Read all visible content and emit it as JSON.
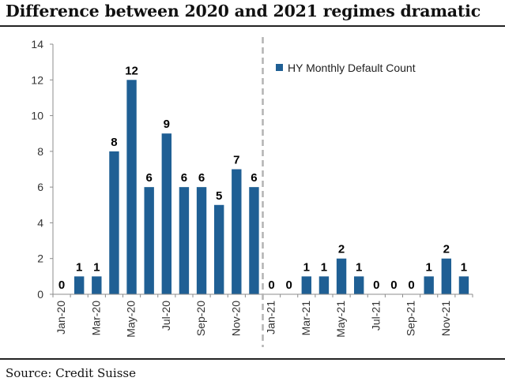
{
  "title": "Difference between 2020 and 2021 regimes dramatic",
  "source": "Source: Credit Suisse",
  "colors": {
    "bar": "#1f5f94",
    "axis": "#8c8c8c",
    "divider": "#b3b3b3"
  },
  "chart_data": {
    "type": "bar",
    "title": "Difference between 2020 and 2021 regimes dramatic",
    "xlabel": "",
    "ylabel": "",
    "ylim": [
      0,
      14
    ],
    "yticks": [
      0,
      2,
      4,
      6,
      8,
      10,
      12,
      14
    ],
    "grid": false,
    "legend": {
      "position": "top-right",
      "entries": [
        "HY Monthly Default Count"
      ]
    },
    "categories": [
      "Jan-20",
      "Feb-20",
      "Mar-20",
      "Apr-20",
      "May-20",
      "Jun-20",
      "Jul-20",
      "Aug-20",
      "Sep-20",
      "Oct-20",
      "Nov-20",
      "Dec-20",
      "Jan-21",
      "Feb-21",
      "Mar-21",
      "Apr-21",
      "May-21",
      "Jun-21",
      "Jul-21",
      "Aug-21",
      "Sep-21",
      "Oct-21",
      "Nov-21",
      "Dec-21"
    ],
    "xtick_labels": [
      "Jan-20",
      "Mar-20",
      "May-20",
      "Jul-20",
      "Sep-20",
      "Nov-20",
      "Jan-21",
      "Mar-21",
      "May-21",
      "Jul-21",
      "Sep-21",
      "Nov-21"
    ],
    "series": [
      {
        "name": "HY Monthly Default Count",
        "values": [
          0,
          1,
          1,
          8,
          12,
          6,
          9,
          6,
          6,
          5,
          7,
          6,
          0,
          0,
          1,
          1,
          2,
          1,
          0,
          0,
          0,
          1,
          2,
          1
        ]
      }
    ],
    "annotations": [
      {
        "type": "dashed-vertical-divider",
        "between": [
          "Dec-20",
          "Jan-21"
        ]
      }
    ]
  }
}
